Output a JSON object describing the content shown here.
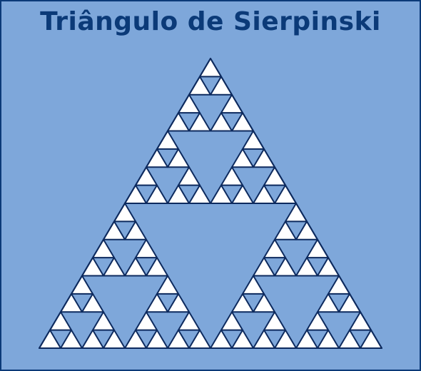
{
  "title": "Triângulo de Sierpinski",
  "fractal": {
    "iterations": 4,
    "fill_color": "#ffffff",
    "stroke_color": "#0d2a5e",
    "background_color": "#7ea7da",
    "border_color": "#0b3a78",
    "title_color": "#0b3a78"
  }
}
